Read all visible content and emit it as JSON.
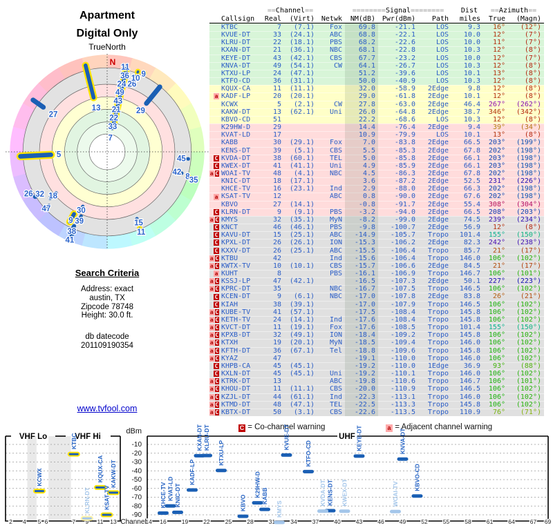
{
  "polar": {
    "title_line1": "Apartment",
    "title_line2": "Digital Only",
    "north_label": "TrueNorth",
    "n_marker": "N",
    "marker_fields": [
      "label",
      "azimuth_deg",
      "bar_r_inner",
      "bar_r_outer",
      "label_r",
      "vhf_yellow",
      "bar_width"
    ],
    "markers": [
      [
        "7",
        13,
        0.24,
        0.9,
        0.15,
        1,
        8
      ],
      [
        "33",
        12,
        0.23,
        0.29,
        0.27,
        0,
        6
      ],
      [
        "22",
        11,
        0.32,
        0.38,
        0.36,
        0,
        6
      ],
      [
        "21",
        12,
        0.41,
        0.47,
        0.45,
        0,
        6
      ],
      [
        "43",
        12,
        0.5,
        0.56,
        0.54,
        0,
        6
      ],
      [
        "49",
        12,
        0.59,
        0.65,
        0.63,
        0,
        6
      ],
      [
        "24",
        12,
        0.68,
        0.74,
        0.72,
        0,
        6
      ],
      [
        "36",
        13,
        0.77,
        0.83,
        0.81,
        0,
        6
      ],
      [
        "11",
        12,
        0.86,
        0.92,
        0.9,
        1,
        6
      ],
      [
        "26",
        20,
        0.8,
        0.85,
        0.75,
        0,
        6
      ],
      [
        "10",
        21,
        0.86,
        0.91,
        0.82,
        1,
        6
      ],
      [
        "9",
        25,
        0.87,
        0.92,
        0.89,
        1,
        6
      ],
      [
        "29",
        39,
        0.62,
        0.89,
        0.55,
        0,
        7
      ],
      [
        "13",
        346,
        0.55,
        0.95,
        0.47,
        1,
        8
      ],
      [
        "27",
        305,
        0.78,
        0.96,
        0.68,
        0,
        7
      ],
      [
        "5",
        267,
        0.55,
        0.93,
        0.5,
        1,
        9
      ],
      [
        "45",
        95,
        0.82,
        0.86,
        0.77,
        0,
        5
      ],
      [
        "42",
        106,
        0.77,
        0.82,
        0.75,
        0,
        5
      ],
      [
        "8",
        107,
        0.85,
        0.9,
        0.87,
        1,
        5
      ],
      [
        "35",
        108,
        0.91,
        0.95,
        0.94,
        0,
        5
      ],
      [
        "15",
        156,
        0.74,
        0.79,
        0.8,
        0,
        5
      ],
      [
        "11",
        157,
        0.84,
        0.89,
        0.9,
        1,
        5
      ],
      [
        "30",
        204,
        0.6,
        0.65,
        0.66,
        0,
        5
      ],
      [
        "39",
        202,
        0.7,
        0.75,
        0.77,
        0,
        5
      ],
      [
        "9",
        208,
        0.7,
        0.85,
        0.8,
        1,
        8
      ],
      [
        "38",
        204,
        0.82,
        0.88,
        0.9,
        0,
        6
      ],
      [
        "41",
        203,
        0.9,
        0.96,
        0.99,
        0,
        6
      ],
      [
        "18",
        231,
        0.66,
        0.78,
        0.72,
        0,
        6
      ],
      [
        "47",
        227,
        0.8,
        0.9,
        0.86,
        0,
        6
      ],
      [
        "32",
        238,
        0.84,
        0.9,
        0.82,
        0,
        6
      ],
      [
        "26",
        242,
        0.88,
        0.94,
        0.92,
        0,
        6
      ]
    ]
  },
  "criteria": {
    "heading": "Search Criteria",
    "lines": [
      "Address: exact",
      "austin, TX",
      "Zipcode 78748",
      "Height: 30.0 ft."
    ],
    "datecode_lines": [
      "db datecode",
      "201109190354"
    ]
  },
  "link_text": "www.tvfool.com",
  "table": {
    "header_groups": {
      "channel": "==Channel==",
      "signal": "========Signal========",
      "dist": "Dist",
      "azimuth": "==Azimuth=="
    },
    "column_labels": [
      "Callsign",
      "Real",
      "(Virt)",
      "Netwk",
      "NM(dB)",
      "Pwr(dBm)",
      "Path",
      "miles",
      "True",
      "(Magn)"
    ]
  },
  "legend": {
    "co_symbol": "C",
    "co_text": "= Co-channel warning",
    "adj_symbol": "a",
    "adj_text": "= Adjacent channel warning"
  },
  "bottom_chart": {
    "vhf_lo_label": "VHF Lo",
    "vhf_hi_label": "VHF Hi",
    "uhf_label": "UHF",
    "dbm_label": "dBm",
    "channel_label": "Channel",
    "y_ticks": [
      -10,
      -20,
      -30,
      -40,
      -50,
      -60,
      -70,
      -80,
      -90
    ],
    "vhf_ticks": [
      2,
      4,
      5,
      6,
      7,
      9,
      11,
      13
    ],
    "uhf_ticks": [
      14,
      16,
      19,
      22,
      25,
      28,
      31,
      34,
      37,
      40,
      43,
      46,
      49,
      52,
      55,
      58,
      61,
      64,
      67,
      69
    ]
  },
  "colors": {
    "band_green": "#d8f5d8",
    "band_yellow": "#ffffc8",
    "band_pink": "#ffdcdc",
    "band_gray": "#e0e0e0",
    "bar_blue": "#1a5fb4",
    "bar_faded": "#a4c6ea",
    "vhf_outline": "#ffe400",
    "vhf_outline_faded": "#fff3a6",
    "warn_red": "#c00000",
    "warn_pink": "#ffaaaa",
    "text_blue": "#2a5dc7",
    "link_blue": "#0000cc",
    "north_red": "#cc0000"
  },
  "chart_data": {
    "type": "table",
    "title": "TV station signal analysis (radar plot + station table + dBm-vs-channel plot)",
    "row_fields": [
      "callsign",
      "real_ch",
      "virt_ch",
      "netwk",
      "nm_db",
      "pwr_dbm",
      "path",
      "miles",
      "true_az_deg",
      "magn_az_deg",
      "band",
      "warn"
    ],
    "rows": [
      [
        "KTBC",
        7,
        "7.1",
        "Fox",
        "69.8",
        "-21.1",
        "LOS",
        "9.3",
        16,
        12,
        "green",
        ""
      ],
      [
        "KVUE-DT",
        33,
        "24.1",
        "ABC",
        "68.8",
        "-22.1",
        "LOS",
        "10.0",
        12,
        7,
        "green",
        ""
      ],
      [
        "KLRU-DT",
        22,
        "18.1",
        "PBS",
        "68.2",
        "-22.6",
        "LOS",
        "10.0",
        11,
        7,
        "green",
        ""
      ],
      [
        "KXAN-DT",
        21,
        "36.1",
        "NBC",
        "68.1",
        "-22.8",
        "LOS",
        "10.3",
        12,
        8,
        "green",
        ""
      ],
      [
        "KEYE-DT",
        43,
        "42.1",
        "CBS",
        "67.7",
        "-23.2",
        "LOS",
        "10.0",
        12,
        7,
        "green",
        ""
      ],
      [
        "KNVA-DT",
        49,
        "54.1",
        "CW",
        "64.1",
        "-26.7",
        "LOS",
        "10.3",
        12,
        8,
        "green",
        ""
      ],
      [
        "KTXU-LP",
        24,
        "47.1",
        "",
        "51.2",
        "-39.6",
        "LOS",
        "10.1",
        13,
        8,
        "green",
        ""
      ],
      [
        "KTFO-CD",
        36,
        "31.1",
        "",
        "50.0",
        "-40.9",
        "LOS",
        "10.3",
        12,
        8,
        "green",
        ""
      ],
      [
        "KQUX-CA",
        11,
        "11.1",
        "",
        "32.0",
        "-58.9",
        "2Edge",
        "9.8",
        12,
        8,
        "yellow",
        ""
      ],
      [
        "KADF-LP",
        20,
        "20.1",
        "",
        "29.0",
        "-61.8",
        "2Edge",
        "10.1",
        12,
        8,
        "yellow",
        "a"
      ],
      [
        "KCWX",
        5,
        "2.1",
        "CW",
        "27.8",
        "-63.0",
        "2Edge",
        "46.4",
        267,
        262,
        "yellow",
        ""
      ],
      [
        "KAKW-DT",
        13,
        "62.1",
        "Uni",
        "26.0",
        "-64.8",
        "2Edge",
        "38.7",
        346,
        342,
        "yellow",
        ""
      ],
      [
        "KBVO-CD",
        51,
        "",
        "",
        "22.2",
        "-68.6",
        "LOS",
        "10.3",
        12,
        8,
        "yellow",
        ""
      ],
      [
        "K29HW-D",
        29,
        "",
        "",
        "14.4",
        "-76.4",
        "2Edge",
        "9.4",
        39,
        34,
        "pink",
        ""
      ],
      [
        "KVAT-LD",
        17,
        "",
        "",
        "10.9",
        "-79.9",
        "LOS",
        "10.1",
        13,
        8,
        "pink",
        ""
      ],
      [
        "KABB",
        30,
        "29.1",
        "Fox",
        "7.0",
        "-83.8",
        "2Edge",
        "66.5",
        203,
        199,
        "pink",
        ""
      ],
      [
        "KENS-DT",
        39,
        "5.1",
        "CBS",
        "5.5",
        "-85.3",
        "2Edge",
        "67.8",
        202,
        198,
        "pink",
        ""
      ],
      [
        "KVDA-DT",
        38,
        "60.1",
        "TEL",
        "5.0",
        "-85.8",
        "2Edge",
        "66.1",
        203,
        198,
        "pink",
        "C"
      ],
      [
        "KWEX-DT",
        41,
        "41.1",
        "Uni",
        "4.9",
        "-85.9",
        "2Edge",
        "66.1",
        203,
        198,
        "pink",
        "C"
      ],
      [
        "WOAI-TV",
        48,
        "4.1",
        "NBC",
        "4.5",
        "-86.3",
        "2Edge",
        "67.8",
        202,
        198,
        "pink",
        "aC"
      ],
      [
        "KNIC-DT",
        18,
        "17.1",
        "",
        "3.6",
        "-87.2",
        "2Edge",
        "52.5",
        231,
        226,
        "pink",
        ""
      ],
      [
        "KHCE-TV",
        16,
        "23.1",
        "Ind",
        "2.9",
        "-88.0",
        "2Edge",
        "66.3",
        202,
        198,
        "pink",
        ""
      ],
      [
        "KSAT-TV",
        12,
        "",
        "ABC",
        "0.8",
        "-90.0",
        "2Edge",
        "67.6",
        202,
        198,
        "pink",
        "a"
      ],
      [
        "KBVO",
        27,
        "14.1",
        "",
        "-0.8",
        "-91.7",
        "2Edge",
        "55.4",
        308,
        304,
        "pink",
        ""
      ],
      [
        "KLRN-DT",
        9,
        "9.1",
        "PBS",
        "-3.2",
        "-94.0",
        "2Edge",
        "66.5",
        208,
        203,
        "pink",
        "C"
      ],
      [
        "KMYS",
        32,
        "35.1",
        "MyN",
        "-8.2",
        "-99.0",
        "2Edge",
        "74.5",
        239,
        234,
        "gray",
        "aC"
      ],
      [
        "KNCT",
        46,
        "46.1",
        "PBS",
        "-9.8",
        "-100.7",
        "2Edge",
        "56.9",
        12,
        8,
        "gray",
        "C"
      ],
      [
        "KAVU-DT",
        15,
        "25.1",
        "ABC",
        "-14.9",
        "-105.7",
        "Tropo",
        "101.4",
        155,
        150,
        "gray",
        "C"
      ],
      [
        "KPXL-DT",
        26,
        "26.1",
        "ION",
        "-15.3",
        "-106.2",
        "2Edge",
        "82.3",
        242,
        238,
        "gray",
        "C"
      ],
      [
        "KXXV-DT",
        26,
        "25.1",
        "ABC",
        "-15.5",
        "-106.4",
        "Tropo",
        "85.7",
        21,
        17,
        "gray",
        "C"
      ],
      [
        "KTBU",
        42,
        "",
        "Ind",
        "-15.6",
        "-106.4",
        "Tropo",
        "146.0",
        106,
        102,
        "gray",
        "aC"
      ],
      [
        "KWTX-TV",
        10,
        "10.1",
        "CBS",
        "-15.7",
        "-106.6",
        "2Edge",
        "84.5",
        21,
        17,
        "gray",
        "aC"
      ],
      [
        "KUHT",
        8,
        "",
        "PBS",
        "-16.1",
        "-106.9",
        "Tropo",
        "146.7",
        106,
        101,
        "gray",
        "a"
      ],
      [
        "KSSJ-LP",
        47,
        "42.1",
        "",
        "-16.5",
        "-107.3",
        "2Edge",
        "50.1",
        227,
        223,
        "gray",
        "aC"
      ],
      [
        "KPRC-DT",
        35,
        "",
        "NBC",
        "-16.7",
        "-107.5",
        "Tropo",
        "146.5",
        106,
        102,
        "gray",
        "aC"
      ],
      [
        "KCEN-DT",
        9,
        "6.1",
        "NBC",
        "-17.0",
        "-107.8",
        "2Edge",
        "83.8",
        26,
        21,
        "gray",
        "C"
      ],
      [
        "KIAH",
        38,
        "39.1",
        "",
        "-17.0",
        "-107.9",
        "Tropo",
        "146.5",
        106,
        102,
        "gray",
        "C"
      ],
      [
        "KUBE-TV",
        41,
        "57.1",
        "",
        "-17.5",
        "-108.4",
        "Tropo",
        "145.8",
        106,
        102,
        "gray",
        "aC"
      ],
      [
        "KETH-TV",
        24,
        "14.1",
        "Ind",
        "-17.6",
        "-108.4",
        "Tropo",
        "145.8",
        106,
        102,
        "gray",
        "aC"
      ],
      [
        "KVCT-DT",
        11,
        "19.1",
        "Fox",
        "-17.6",
        "-108.5",
        "Tropo",
        "101.4",
        155,
        150,
        "gray",
        "aC"
      ],
      [
        "KPXB-DT",
        32,
        "49.1",
        "ION",
        "-18.4",
        "-109.2",
        "Tropo",
        "145.8",
        106,
        102,
        "gray",
        "aC"
      ],
      [
        "KTXH",
        19,
        "20.1",
        "MyN",
        "-18.5",
        "-109.4",
        "Tropo",
        "146.0",
        106,
        102,
        "gray",
        "aC"
      ],
      [
        "KFTH-DT",
        36,
        "67.1",
        "Tel",
        "-18.8",
        "-109.6",
        "Tropo",
        "145.8",
        106,
        102,
        "gray",
        "aC"
      ],
      [
        "KYAZ",
        47,
        "",
        "",
        "-19.1",
        "-110.0",
        "Tropo",
        "146.0",
        106,
        102,
        "gray",
        "aC"
      ],
      [
        "KHPB-CA",
        45,
        "45.1",
        "",
        "-19.2",
        "-110.0",
        "1Edge",
        "36.9",
        93,
        88,
        "gray",
        "C"
      ],
      [
        "KXLN-DT",
        45,
        "45.1",
        "Uni",
        "-19.2",
        "-110.1",
        "Tropo",
        "146.0",
        106,
        102,
        "gray",
        "C"
      ],
      [
        "KTRK-DT",
        13,
        "",
        "ABC",
        "-19.8",
        "-110.6",
        "Tropo",
        "146.7",
        106,
        101,
        "gray",
        "aC"
      ],
      [
        "KHOU-DT",
        11,
        "11.1",
        "CBS",
        "-20.0",
        "-110.9",
        "Tropo",
        "146.5",
        106,
        102,
        "gray",
        "aC"
      ],
      [
        "KZJL-DT",
        44,
        "61.1",
        "Ind",
        "-22.3",
        "-113.1",
        "Tropo",
        "146.0",
        106,
        102,
        "gray",
        "aC"
      ],
      [
        "KTMD-DT",
        48,
        "47.1",
        "TEL",
        "-22.5",
        "-113.3",
        "Tropo",
        "145.8",
        106,
        102,
        "gray",
        "aC"
      ],
      [
        "KBTX-DT",
        50,
        "3.1",
        "CBS",
        "-22.6",
        "-113.5",
        "Tropo",
        "110.9",
        76,
        71,
        "gray",
        "aC"
      ]
    ]
  }
}
